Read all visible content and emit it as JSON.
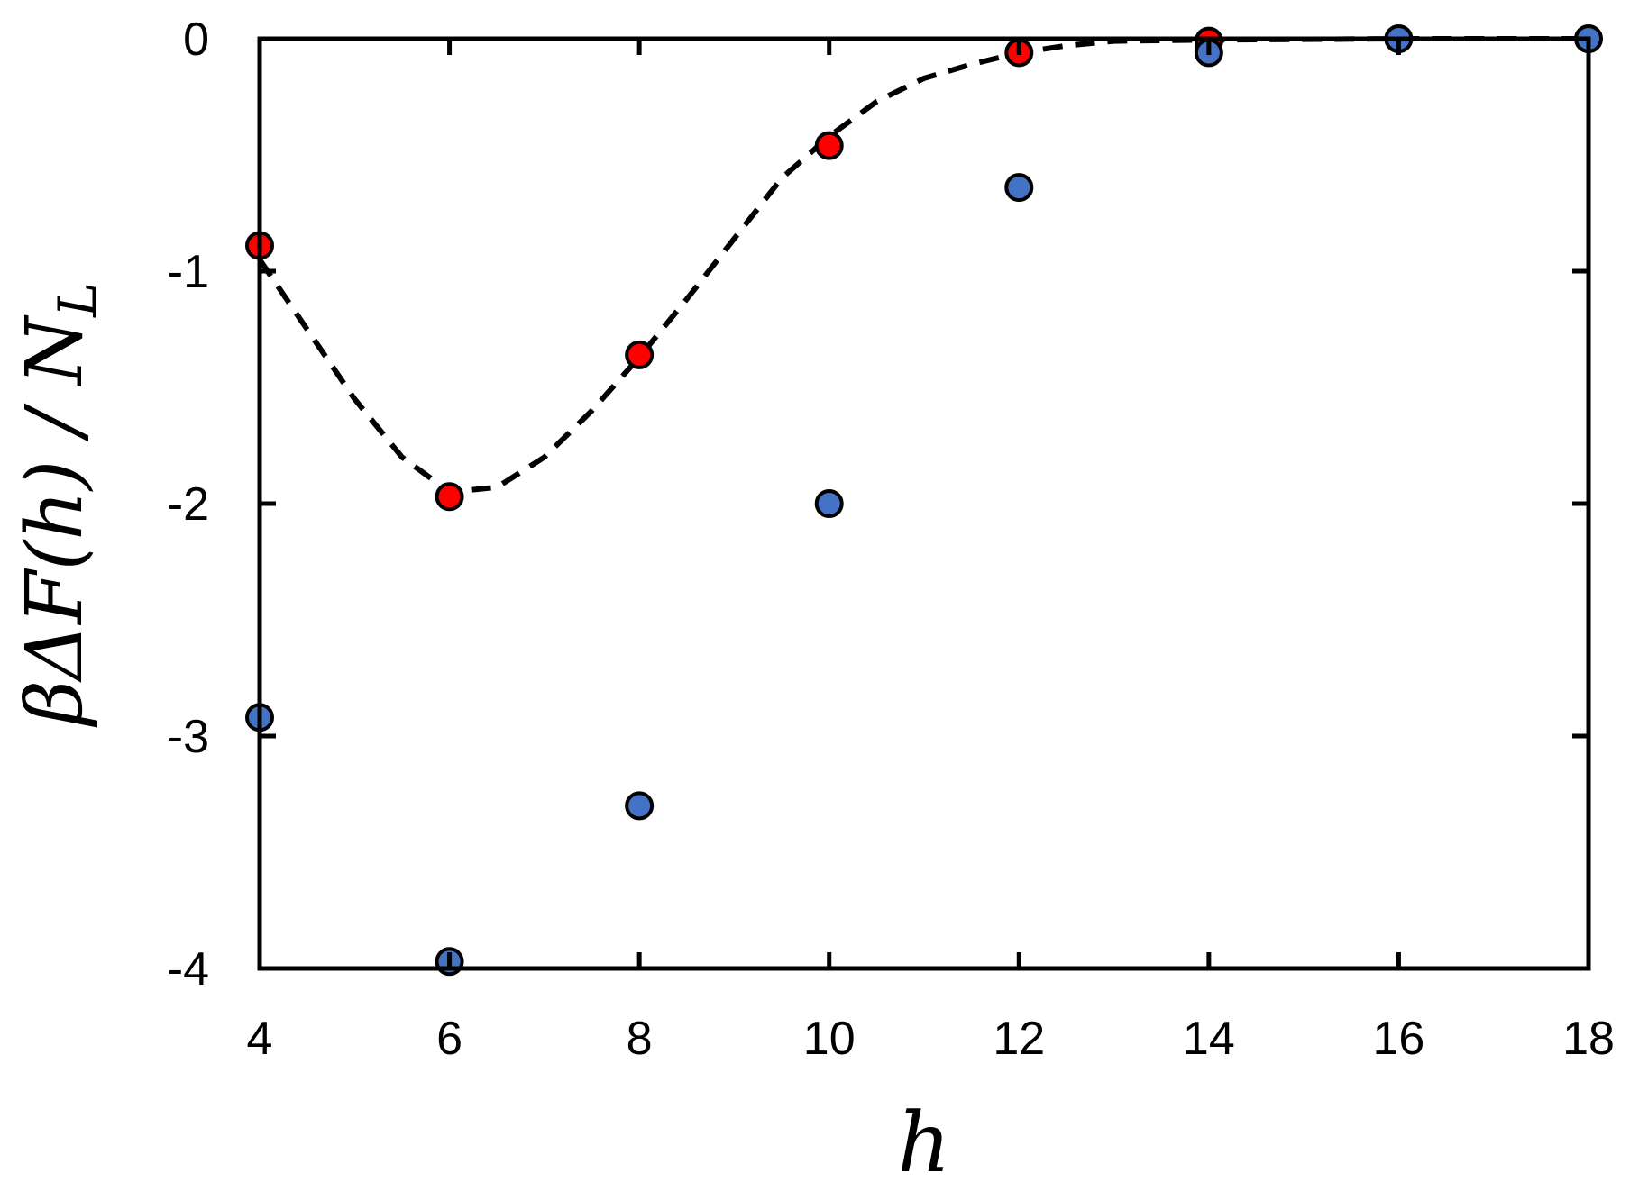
{
  "chart_data": {
    "type": "scatter",
    "xlabel": "h",
    "ylabel": "βΔF(h) / N_L",
    "ylabel_parts": {
      "main": "βΔF(h) / N",
      "subscript": "L"
    },
    "xlim": [
      4,
      18
    ],
    "ylim": [
      -4,
      0
    ],
    "x_ticks": [
      4,
      6,
      8,
      10,
      12,
      14,
      16,
      18
    ],
    "y_ticks": [
      0,
      -1,
      -2,
      -3,
      -4
    ],
    "grid": false,
    "series": [
      {
        "color": "#ff0000",
        "marker": "circle",
        "line_style": "dashed",
        "points": [
          {
            "x": 4,
            "y": -0.89
          },
          {
            "x": 6,
            "y": -1.97
          },
          {
            "x": 8,
            "y": -1.36
          },
          {
            "x": 10,
            "y": -0.46
          },
          {
            "x": 12,
            "y": -0.06
          },
          {
            "x": 14,
            "y": -0.01
          }
        ],
        "curve": [
          {
            "x": 4.0,
            "y": -0.95
          },
          {
            "x": 4.5,
            "y": -1.25
          },
          {
            "x": 5.0,
            "y": -1.55
          },
          {
            "x": 5.5,
            "y": -1.8
          },
          {
            "x": 6.0,
            "y": -1.95
          },
          {
            "x": 6.5,
            "y": -1.93
          },
          {
            "x": 7.0,
            "y": -1.8
          },
          {
            "x": 7.5,
            "y": -1.6
          },
          {
            "x": 8.0,
            "y": -1.37
          },
          {
            "x": 8.5,
            "y": -1.12
          },
          {
            "x": 9.0,
            "y": -0.86
          },
          {
            "x": 9.5,
            "y": -0.6
          },
          {
            "x": 10.0,
            "y": -0.42
          },
          {
            "x": 10.5,
            "y": -0.27
          },
          {
            "x": 11.0,
            "y": -0.17
          },
          {
            "x": 11.5,
            "y": -0.11
          },
          {
            "x": 12.0,
            "y": -0.06
          },
          {
            "x": 12.5,
            "y": -0.03
          },
          {
            "x": 13.0,
            "y": -0.01
          },
          {
            "x": 14.0,
            "y": -0.005
          },
          {
            "x": 16.0,
            "y": 0.0
          },
          {
            "x": 18.0,
            "y": 0.0
          }
        ]
      },
      {
        "color": "#4472c4",
        "marker": "circle",
        "line_style": "none",
        "points": [
          {
            "x": 4,
            "y": -2.92
          },
          {
            "x": 6,
            "y": -3.97
          },
          {
            "x": 8,
            "y": -3.3
          },
          {
            "x": 10,
            "y": -2.0
          },
          {
            "x": 12,
            "y": -0.64
          },
          {
            "x": 14,
            "y": -0.06
          },
          {
            "x": 16,
            "y": 0.0
          },
          {
            "x": 18,
            "y": 0.0
          }
        ]
      }
    ]
  }
}
